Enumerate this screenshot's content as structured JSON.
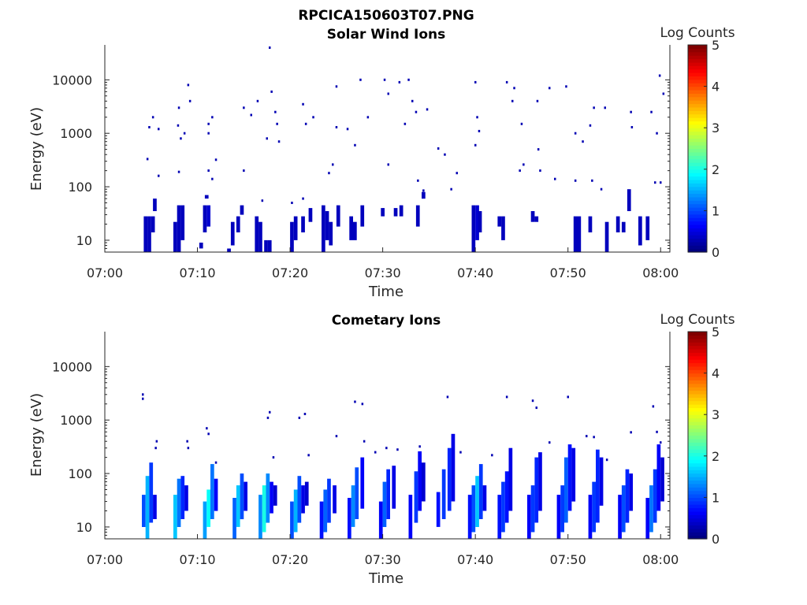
{
  "figure_title": "RPCICA150603T07.PNG",
  "chart_data": [
    {
      "type": "heatmap",
      "title": "Solar Wind Ions",
      "xlabel": "Time",
      "ylabel": "Energy (eV)",
      "y_scale": "log",
      "ylim": [
        6,
        45000
      ],
      "xlim": [
        "07:00",
        "08:01"
      ],
      "x_ticks": [
        "07:00",
        "07:10",
        "07:20",
        "07:30",
        "07:40",
        "07:50",
        "08:00"
      ],
      "y_ticks": [
        {
          "value": 10,
          "label": "10"
        },
        {
          "value": 100,
          "label": "100"
        },
        {
          "value": 1000,
          "label": "1000"
        },
        {
          "value": 10000,
          "label": "10000"
        }
      ],
      "colorbar": {
        "label": "Log Counts",
        "range": [
          0,
          5
        ],
        "ticks": [
          "0",
          "1",
          "2",
          "3",
          "4",
          "5"
        ],
        "colormap": "jet"
      },
      "data_description_columns": [
        "time_min",
        "energy_low_eV",
        "energy_high_eV",
        "log_counts"
      ],
      "cells": [
        [
          4.2,
          6,
          28,
          0.3
        ],
        [
          4.6,
          6,
          28,
          0.3
        ],
        [
          5.0,
          14,
          28,
          0.3
        ],
        [
          5.2,
          35,
          60,
          0.3
        ],
        [
          7.4,
          6,
          22,
          0.3
        ],
        [
          7.8,
          6,
          45,
          0.3
        ],
        [
          8.2,
          10,
          45,
          0.3
        ],
        [
          10.6,
          14,
          45,
          0.3
        ],
        [
          11.0,
          18,
          45,
          0.4
        ],
        [
          10.8,
          60,
          70,
          0.3
        ],
        [
          10.2,
          7,
          9,
          0.3
        ],
        [
          13.2,
          6,
          7,
          0.3
        ],
        [
          13.6,
          8,
          22,
          0.3
        ],
        [
          14.2,
          14,
          28,
          0.3
        ],
        [
          14.6,
          30,
          45,
          0.3
        ],
        [
          16.2,
          6,
          28,
          0.3
        ],
        [
          16.6,
          6,
          22,
          0.3
        ],
        [
          17.2,
          6,
          10,
          0.3
        ],
        [
          17.6,
          6,
          10,
          0.3
        ],
        [
          20.0,
          6,
          22,
          0.3
        ],
        [
          20.4,
          10,
          28,
          0.3
        ],
        [
          21.2,
          14,
          28,
          0.3
        ],
        [
          22.0,
          22,
          40,
          0.3
        ],
        [
          23.4,
          6,
          45,
          0.3
        ],
        [
          23.8,
          10,
          35,
          0.3
        ],
        [
          24.2,
          8,
          22,
          0.3
        ],
        [
          25.0,
          18,
          45,
          0.3
        ],
        [
          26.4,
          10,
          28,
          0.3
        ],
        [
          26.8,
          10,
          22,
          0.3
        ],
        [
          27.6,
          18,
          45,
          0.3
        ],
        [
          29.8,
          28,
          40,
          0.3
        ],
        [
          31.2,
          28,
          40,
          0.3
        ],
        [
          31.8,
          28,
          45,
          0.3
        ],
        [
          33.6,
          18,
          45,
          0.3
        ],
        [
          34.2,
          60,
          80,
          0.3
        ],
        [
          39.6,
          6,
          45,
          0.3
        ],
        [
          40.0,
          10,
          45,
          0.4
        ],
        [
          40.3,
          14,
          35,
          0.3
        ],
        [
          42.4,
          18,
          28,
          0.3
        ],
        [
          42.8,
          10,
          28,
          0.3
        ],
        [
          46.0,
          22,
          35,
          0.3
        ],
        [
          46.4,
          22,
          28,
          0.3
        ],
        [
          50.6,
          6,
          28,
          0.3
        ],
        [
          51.0,
          6,
          28,
          0.3
        ],
        [
          52.2,
          14,
          28,
          0.3
        ],
        [
          54.0,
          6,
          22,
          0.3
        ],
        [
          55.2,
          14,
          28,
          0.3
        ],
        [
          55.8,
          14,
          22,
          0.3
        ],
        [
          56.4,
          35,
          90,
          0.3
        ],
        [
          57.6,
          8,
          28,
          0.3
        ],
        [
          58.4,
          10,
          28,
          0.3
        ]
      ],
      "scatter_points": [
        [
          5.2,
          2000
        ],
        [
          4.8,
          1300
        ],
        [
          5.8,
          1200
        ],
        [
          8.2,
          800
        ],
        [
          8.6,
          1000
        ],
        [
          7.9,
          1400
        ],
        [
          8.0,
          3000
        ],
        [
          9.0,
          8000
        ],
        [
          9.2,
          4000
        ],
        [
          11.2,
          1500
        ],
        [
          11.6,
          2000
        ],
        [
          11.2,
          1000
        ],
        [
          15.0,
          3000
        ],
        [
          15.8,
          2200
        ],
        [
          16.5,
          4000
        ],
        [
          17.8,
          40000
        ],
        [
          18.0,
          6000
        ],
        [
          18.4,
          2500
        ],
        [
          18.6,
          1500
        ],
        [
          17.5,
          800
        ],
        [
          18.8,
          700
        ],
        [
          21.4,
          3500
        ],
        [
          21.7,
          1500
        ],
        [
          22.5,
          2000
        ],
        [
          25.0,
          7500
        ],
        [
          25.0,
          1300
        ],
        [
          26.2,
          1200
        ],
        [
          27.6,
          10000
        ],
        [
          27.0,
          600
        ],
        [
          28.4,
          2000
        ],
        [
          30.2,
          10000
        ],
        [
          30.6,
          5500
        ],
        [
          31.8,
          9000
        ],
        [
          32.4,
          1500
        ],
        [
          32.8,
          10000
        ],
        [
          33.2,
          4000
        ],
        [
          33.6,
          2500
        ],
        [
          34.8,
          2800
        ],
        [
          36.7,
          400
        ],
        [
          40.0,
          9000
        ],
        [
          40.2,
          2000
        ],
        [
          40.0,
          600
        ],
        [
          40.4,
          1100
        ],
        [
          43.4,
          9000
        ],
        [
          44.2,
          7000
        ],
        [
          44.0,
          4000
        ],
        [
          45.0,
          1500
        ],
        [
          46.7,
          4000
        ],
        [
          46.8,
          500
        ],
        [
          48.0,
          7000
        ],
        [
          49.8,
          7500
        ],
        [
          50.8,
          1000
        ],
        [
          51.6,
          700
        ],
        [
          52.4,
          1400
        ],
        [
          52.8,
          3000
        ],
        [
          54.0,
          3000
        ],
        [
          56.8,
          2500
        ],
        [
          56.9,
          1300
        ],
        [
          59.0,
          2500
        ],
        [
          59.6,
          1000
        ],
        [
          59.9,
          12000
        ],
        [
          60.3,
          5500
        ],
        [
          60.0,
          120
        ],
        [
          59.4,
          120
        ],
        [
          52.6,
          130
        ],
        [
          50.8,
          130
        ],
        [
          53.6,
          90
        ],
        [
          48.6,
          140
        ],
        [
          47.0,
          200
        ],
        [
          45.2,
          260
        ],
        [
          44.8,
          200
        ],
        [
          38.0,
          180
        ],
        [
          37.4,
          90
        ],
        [
          30.6,
          260
        ],
        [
          33.8,
          130
        ],
        [
          34.4,
          85
        ],
        [
          24.2,
          180
        ],
        [
          24.6,
          260
        ],
        [
          21.4,
          60
        ],
        [
          20.2,
          50
        ],
        [
          15.0,
          200
        ],
        [
          17.0,
          55
        ],
        [
          11.2,
          200
        ],
        [
          11.6,
          140
        ],
        [
          12.0,
          320
        ],
        [
          8.0,
          190
        ],
        [
          5.8,
          160
        ],
        [
          4.6,
          330
        ],
        [
          36.0,
          520
        ]
      ]
    },
    {
      "type": "heatmap",
      "title": "Cometary Ions",
      "xlabel": "Time",
      "ylabel": "Energy (eV)",
      "y_scale": "log",
      "ylim": [
        6,
        45000
      ],
      "xlim": [
        "07:00",
        "08:01"
      ],
      "x_ticks": [
        "07:00",
        "07:10",
        "07:20",
        "07:30",
        "07:40",
        "07:50",
        "08:00"
      ],
      "y_ticks": [
        {
          "value": 10,
          "label": "10"
        },
        {
          "value": 100,
          "label": "100"
        },
        {
          "value": 1000,
          "label": "1000"
        },
        {
          "value": 10000,
          "label": "10000"
        }
      ],
      "colorbar": {
        "label": "Log Counts",
        "range": [
          0,
          5
        ],
        "ticks": [
          "0",
          "1",
          "2",
          "3",
          "4",
          "5"
        ],
        "colormap": "jet"
      },
      "data_description_columns": [
        "time_min",
        "energy_low_eV",
        "energy_high_eV",
        "log_counts"
      ],
      "cells": [
        [
          4.0,
          10,
          40,
          1.0
        ],
        [
          4.4,
          6,
          90,
          1.5
        ],
        [
          4.8,
          12,
          160,
          0.9
        ],
        [
          5.2,
          14,
          40,
          0.5
        ],
        [
          7.4,
          6,
          40,
          1.6
        ],
        [
          7.8,
          10,
          80,
          1.2
        ],
        [
          8.2,
          14,
          90,
          0.8
        ],
        [
          8.6,
          20,
          60,
          0.5
        ],
        [
          10.6,
          6,
          30,
          1.4
        ],
        [
          11.0,
          10,
          50,
          1.9
        ],
        [
          11.4,
          14,
          150,
          1.2
        ],
        [
          11.8,
          20,
          80,
          0.6
        ],
        [
          13.8,
          6,
          35,
          1.1
        ],
        [
          14.2,
          10,
          60,
          1.6
        ],
        [
          14.6,
          14,
          100,
          1.0
        ],
        [
          15.0,
          20,
          70,
          0.5
        ],
        [
          16.6,
          6,
          40,
          1.3
        ],
        [
          17.0,
          8,
          60,
          2.0
        ],
        [
          17.4,
          12,
          100,
          1.3
        ],
        [
          17.8,
          18,
          70,
          0.6
        ],
        [
          18.2,
          25,
          60,
          0.4
        ],
        [
          20.0,
          6,
          30,
          1.0
        ],
        [
          20.4,
          8,
          50,
          1.5
        ],
        [
          20.8,
          12,
          90,
          1.0
        ],
        [
          21.2,
          18,
          60,
          0.5
        ],
        [
          21.6,
          25,
          70,
          0.4
        ],
        [
          23.2,
          6,
          30,
          0.7
        ],
        [
          23.6,
          8,
          50,
          1.1
        ],
        [
          24.0,
          12,
          80,
          0.9
        ],
        [
          24.6,
          18,
          60,
          0.5
        ],
        [
          26.2,
          6,
          35,
          0.7
        ],
        [
          26.6,
          10,
          60,
          1.3
        ],
        [
          27.0,
          14,
          130,
          1.0
        ],
        [
          27.6,
          22,
          200,
          0.6
        ],
        [
          29.6,
          6,
          30,
          0.6
        ],
        [
          30.0,
          10,
          70,
          1.1
        ],
        [
          30.4,
          14,
          120,
          0.8
        ],
        [
          31.0,
          22,
          140,
          0.5
        ],
        [
          32.8,
          6,
          40,
          0.6
        ],
        [
          33.4,
          12,
          110,
          0.9
        ],
        [
          33.8,
          20,
          260,
          0.6
        ],
        [
          34.2,
          30,
          160,
          0.4
        ],
        [
          35.8,
          10,
          45,
          0.7
        ],
        [
          36.4,
          14,
          120,
          0.9
        ],
        [
          37.0,
          20,
          300,
          0.8
        ],
        [
          37.4,
          30,
          550,
          0.5
        ],
        [
          39.2,
          6,
          40,
          0.7
        ],
        [
          39.6,
          8,
          60,
          1.0
        ],
        [
          40.0,
          10,
          90,
          1.6
        ],
        [
          40.4,
          14,
          150,
          0.9
        ],
        [
          40.8,
          20,
          60,
          0.5
        ],
        [
          42.4,
          6,
          40,
          0.7
        ],
        [
          42.8,
          8,
          70,
          0.9
        ],
        [
          43.2,
          12,
          110,
          0.7
        ],
        [
          43.6,
          20,
          300,
          0.5
        ],
        [
          45.6,
          6,
          40,
          0.6
        ],
        [
          46.0,
          8,
          60,
          0.9
        ],
        [
          46.4,
          12,
          200,
          0.8
        ],
        [
          46.8,
          20,
          250,
          0.5
        ],
        [
          48.8,
          6,
          40,
          0.6
        ],
        [
          49.2,
          8,
          60,
          0.9
        ],
        [
          49.6,
          12,
          200,
          1.1
        ],
        [
          50.0,
          20,
          350,
          0.7
        ],
        [
          50.4,
          30,
          300,
          0.5
        ],
        [
          52.2,
          6,
          40,
          0.6
        ],
        [
          52.6,
          8,
          70,
          0.9
        ],
        [
          53.0,
          12,
          280,
          0.8
        ],
        [
          53.4,
          25,
          200,
          0.5
        ],
        [
          55.4,
          6,
          40,
          0.6
        ],
        [
          55.8,
          8,
          60,
          1.0
        ],
        [
          56.2,
          12,
          120,
          0.8
        ],
        [
          56.6,
          20,
          100,
          0.5
        ],
        [
          58.4,
          6,
          35,
          0.6
        ],
        [
          58.8,
          8,
          60,
          1.2
        ],
        [
          59.2,
          12,
          120,
          0.9
        ],
        [
          59.6,
          20,
          350,
          0.6
        ],
        [
          60.0,
          30,
          200,
          0.4
        ]
      ],
      "scatter_points": [
        [
          4.1,
          3000
        ],
        [
          4.1,
          2500
        ],
        [
          5.6,
          400
        ],
        [
          5.5,
          300
        ],
        [
          8.9,
          400
        ],
        [
          9.0,
          300
        ],
        [
          11.0,
          700
        ],
        [
          11.2,
          550
        ],
        [
          12.0,
          160
        ],
        [
          17.8,
          1400
        ],
        [
          17.6,
          1100
        ],
        [
          18.2,
          200
        ],
        [
          21.0,
          1100
        ],
        [
          21.6,
          1300
        ],
        [
          22.0,
          220
        ],
        [
          25.0,
          500
        ],
        [
          27.0,
          2200
        ],
        [
          27.8,
          2000
        ],
        [
          28.0,
          400
        ],
        [
          29.2,
          250
        ],
        [
          30.4,
          300
        ],
        [
          31.6,
          280
        ],
        [
          34.0,
          320
        ],
        [
          37.0,
          2700
        ],
        [
          38.4,
          250
        ],
        [
          41.8,
          220
        ],
        [
          43.4,
          2700
        ],
        [
          46.2,
          2300
        ],
        [
          46.6,
          1700
        ],
        [
          48.0,
          380
        ],
        [
          50.0,
          2700
        ],
        [
          52.0,
          500
        ],
        [
          52.8,
          480
        ],
        [
          54.2,
          180
        ],
        [
          56.8,
          590
        ],
        [
          59.2,
          1800
        ],
        [
          59.6,
          600
        ],
        [
          60.0,
          380
        ]
      ]
    }
  ]
}
